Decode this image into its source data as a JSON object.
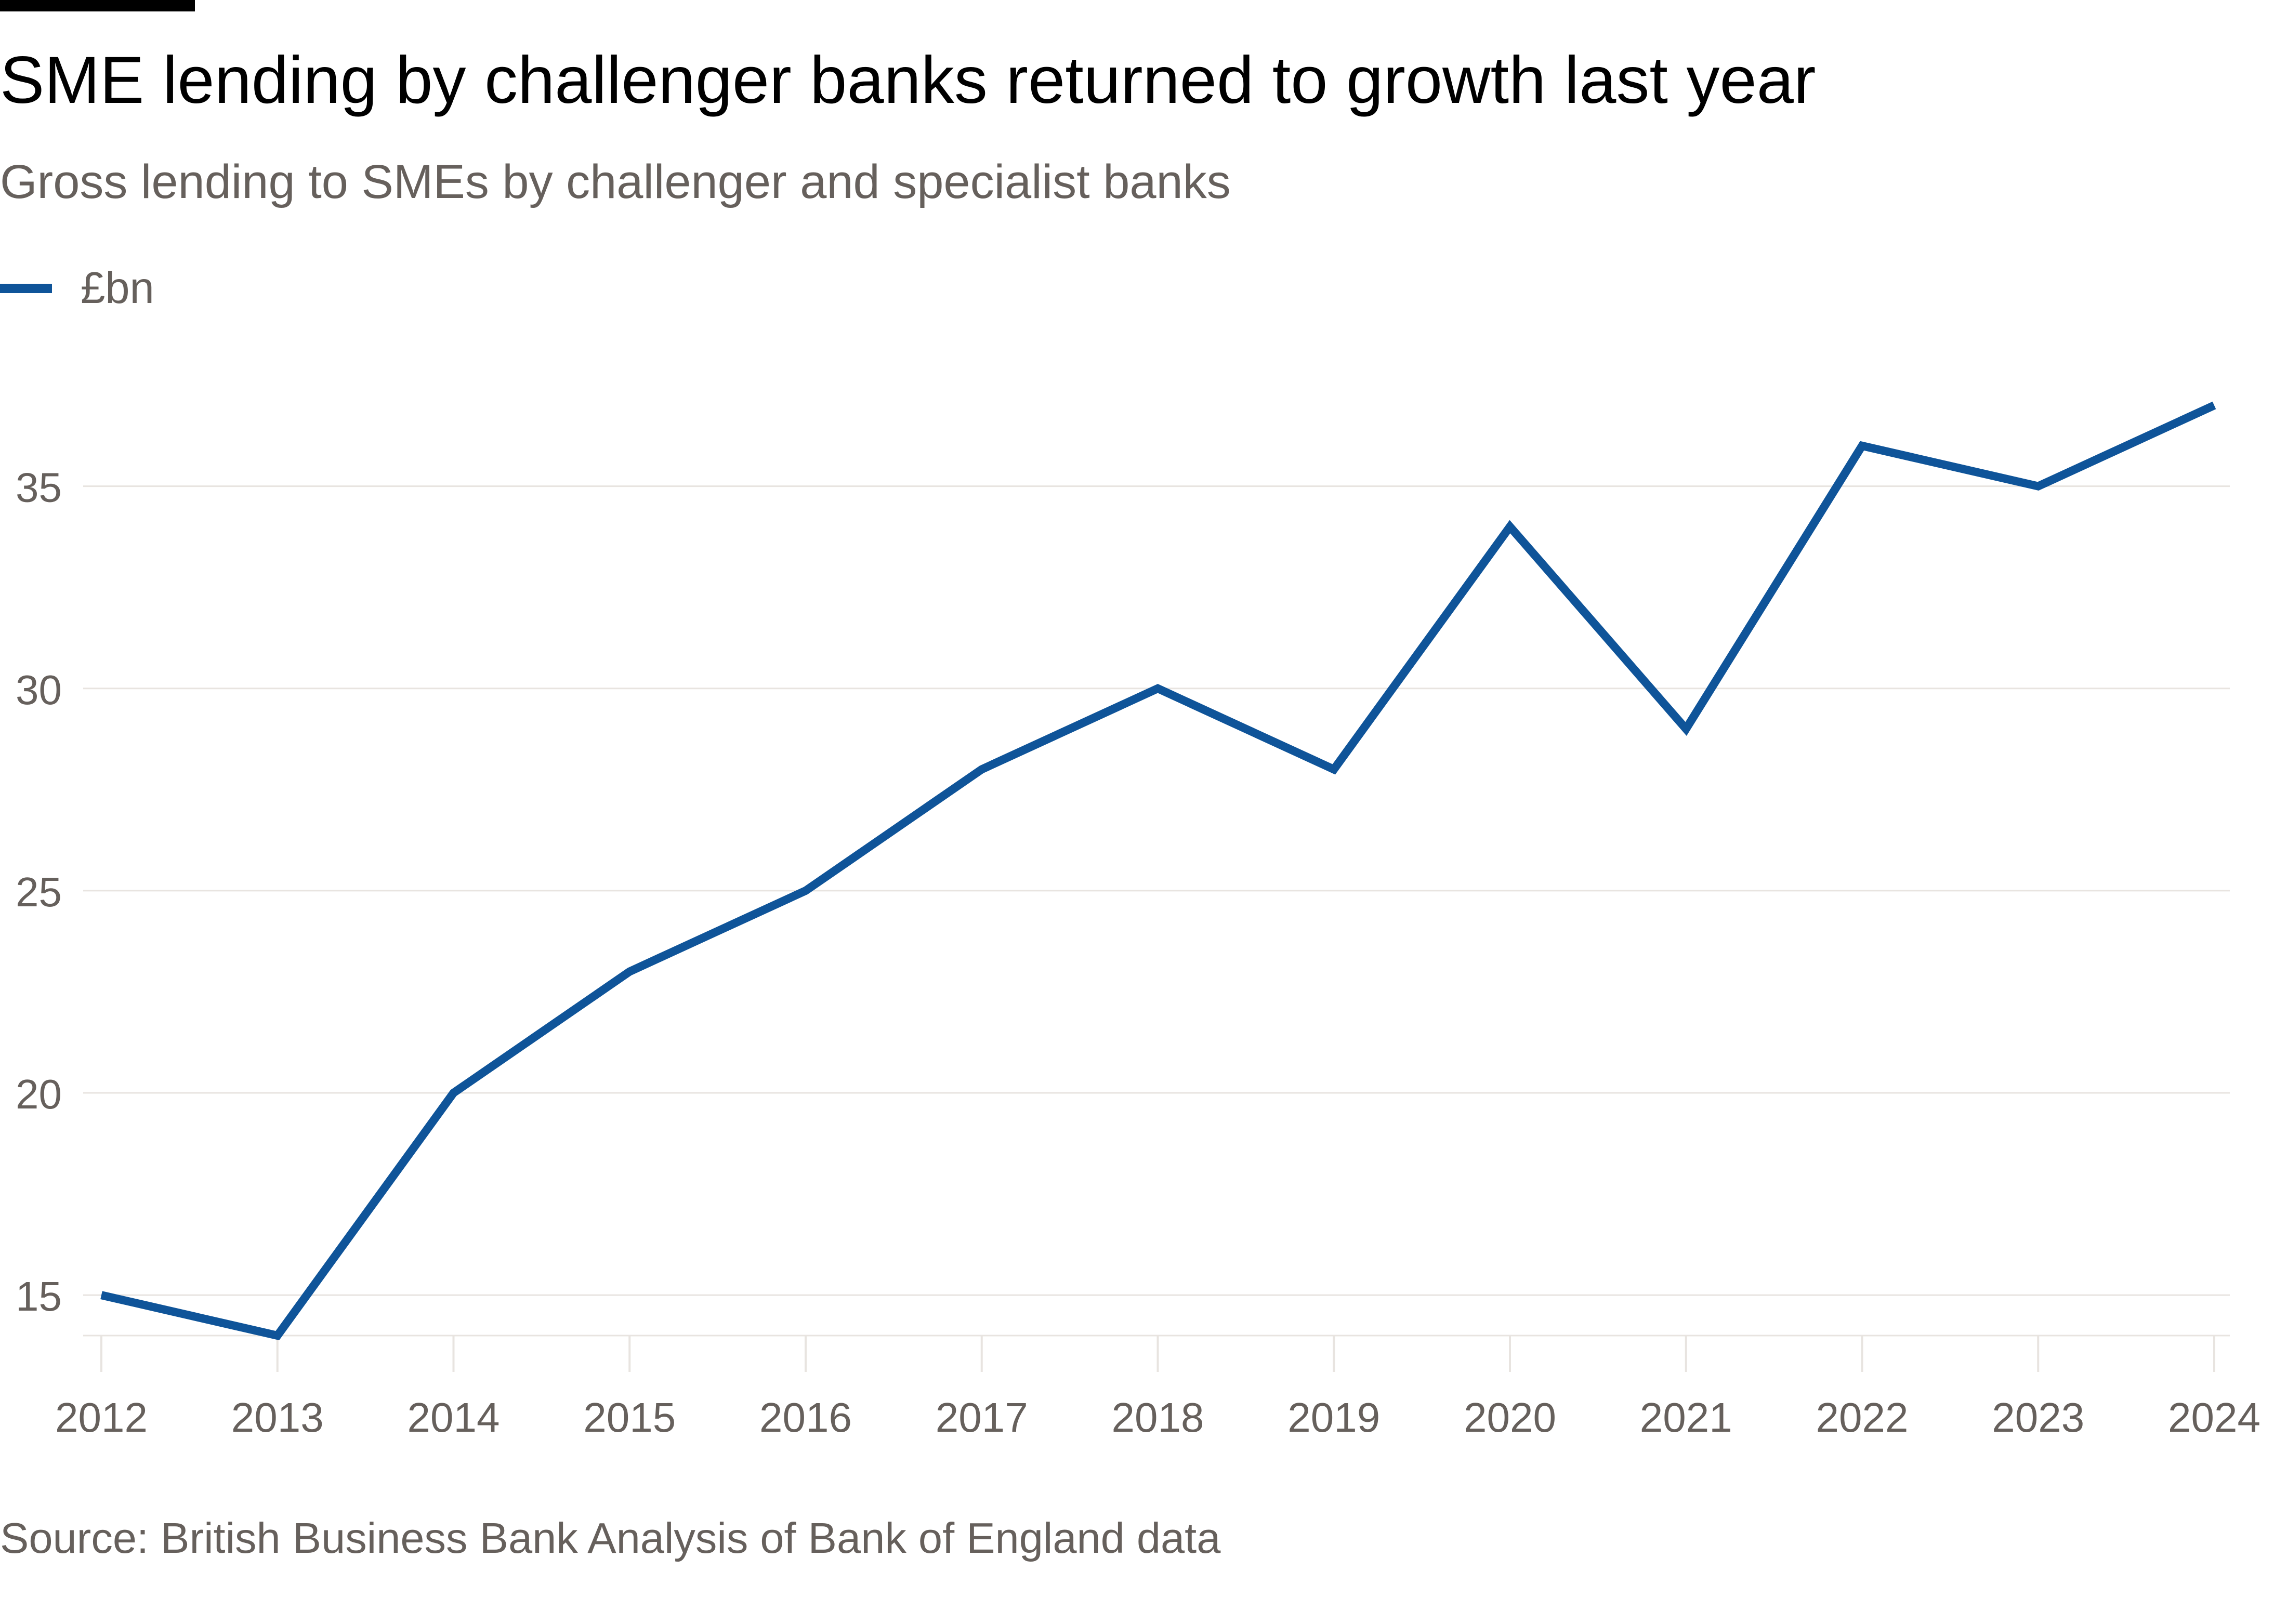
{
  "colors": {
    "line": "#0f5499",
    "grid": "#e8e4e0",
    "text_muted": "#66605c",
    "title": "#000000"
  },
  "title": "SME lending by challenger banks returned to growth last year",
  "subtitle": "Gross lending to SMEs by challenger and specialist banks",
  "source": "Source: British Business Bank Analysis of Bank of England data",
  "legend": [
    {
      "label": "£bn",
      "color": "#0f5499"
    }
  ],
  "chart_data": {
    "type": "line",
    "title": "SME lending by challenger banks returned to growth last year",
    "subtitle": "Gross lending to SMEs by challenger and specialist banks",
    "xlabel": "",
    "ylabel": "",
    "x": [
      "2012",
      "2013",
      "2014",
      "2015",
      "2016",
      "2017",
      "2018",
      "2019",
      "2020",
      "2021",
      "2022",
      "2023",
      "2024"
    ],
    "series": [
      {
        "name": "£bn",
        "values": [
          15,
          14,
          20,
          23,
          25,
          28,
          30,
          28,
          34,
          29,
          36,
          35,
          37
        ]
      }
    ],
    "y_ticks": [
      "15",
      "20",
      "25",
      "30",
      "35"
    ],
    "ylim": [
      14,
      37
    ],
    "grid": true,
    "legend_position": "top-left"
  }
}
